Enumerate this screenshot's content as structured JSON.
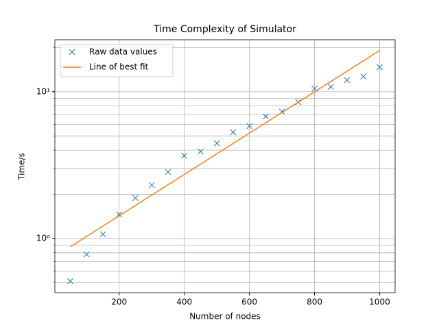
{
  "chart_data": {
    "type": "scatter-line",
    "title": "Time Complexity of Simulator",
    "xlabel": "Number of nodes",
    "ylabel": "Time/s",
    "xlim": [
      2.5,
      1047.5
    ],
    "xticks": [
      200,
      400,
      600,
      800,
      1000
    ],
    "ylim": [
      0.428,
      22.6
    ],
    "ylog": true,
    "yticks": [
      {
        "value": 1,
        "label": "10⁰"
      },
      {
        "value": 10,
        "label": "10¹"
      }
    ],
    "yminorticks": [
      0.5,
      0.6,
      0.7,
      0.8,
      0.9,
      2,
      3,
      4,
      5,
      6,
      7,
      8,
      9,
      20
    ],
    "grid": true,
    "legend": "upper left",
    "series": [
      {
        "name": "Raw data values",
        "color": "#1f77b4",
        "marker": "x",
        "x": [
          50,
          100,
          150,
          200,
          250,
          300,
          350,
          400,
          450,
          500,
          550,
          600,
          650,
          700,
          750,
          800,
          850,
          900,
          950,
          1000
        ],
        "values": [
          0.513,
          0.78,
          1.07,
          1.46,
          1.89,
          2.31,
          2.84,
          3.67,
          3.92,
          4.46,
          5.3,
          5.84,
          6.79,
          7.32,
          8.51,
          10.5,
          10.8,
          12.0,
          12.7,
          14.7
        ]
      },
      {
        "name": "Line of best fit",
        "color": "#ff7f0e",
        "marker": "line",
        "x": [
          50,
          1000
        ],
        "values": [
          0.88,
          19.1
        ]
      }
    ]
  }
}
